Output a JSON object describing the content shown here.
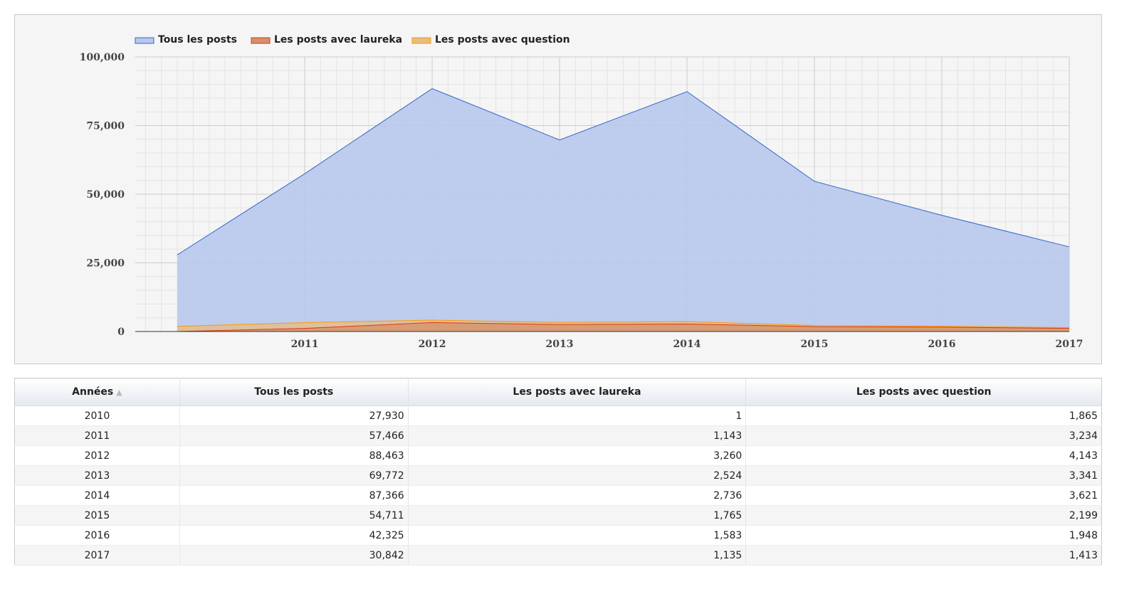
{
  "chart_data": {
    "type": "area",
    "x": [
      2010,
      2011,
      2012,
      2013,
      2014,
      2015,
      2016,
      2017
    ],
    "x_tick_labels": [
      "2011",
      "2012",
      "2013",
      "2014",
      "2015",
      "2016",
      "2017"
    ],
    "y_tick_labels": [
      "0",
      "25,000",
      "50,000",
      "75,000",
      "100,000"
    ],
    "ylim": [
      0,
      100000
    ],
    "grid": true,
    "legend_position": "top-left",
    "series": [
      {
        "name": "Tous les posts",
        "color": "#3366cc",
        "fill": "#b8c8ec",
        "values": [
          27930,
          57466,
          88463,
          69772,
          87366,
          54711,
          42325,
          30842
        ]
      },
      {
        "name": "Les posts avec laureka",
        "color": "#dc3912",
        "fill": "#d4906a",
        "values": [
          1,
          1143,
          3260,
          2524,
          2736,
          1765,
          1583,
          1135
        ]
      },
      {
        "name": "Les posts avec question",
        "color": "#ff9900",
        "fill": "#e8bc80",
        "values": [
          1865,
          3234,
          4143,
          3341,
          3621,
          2199,
          1948,
          1413
        ]
      }
    ]
  },
  "table": {
    "headers": [
      "Années",
      "Tous les posts",
      "Les posts avec laureka",
      "Les posts avec question"
    ],
    "sort_icon": "sort-ascending-icon",
    "rows": [
      [
        "2010",
        "27,930",
        "1",
        "1,865"
      ],
      [
        "2011",
        "57,466",
        "1,143",
        "3,234"
      ],
      [
        "2012",
        "88,463",
        "3,260",
        "4,143"
      ],
      [
        "2013",
        "69,772",
        "2,524",
        "3,341"
      ],
      [
        "2014",
        "87,366",
        "2,736",
        "3,621"
      ],
      [
        "2015",
        "54,711",
        "1,765",
        "2,199"
      ],
      [
        "2016",
        "42,325",
        "1,583",
        "1,948"
      ],
      [
        "2017",
        "30,842",
        "1,135",
        "1,413"
      ]
    ]
  }
}
